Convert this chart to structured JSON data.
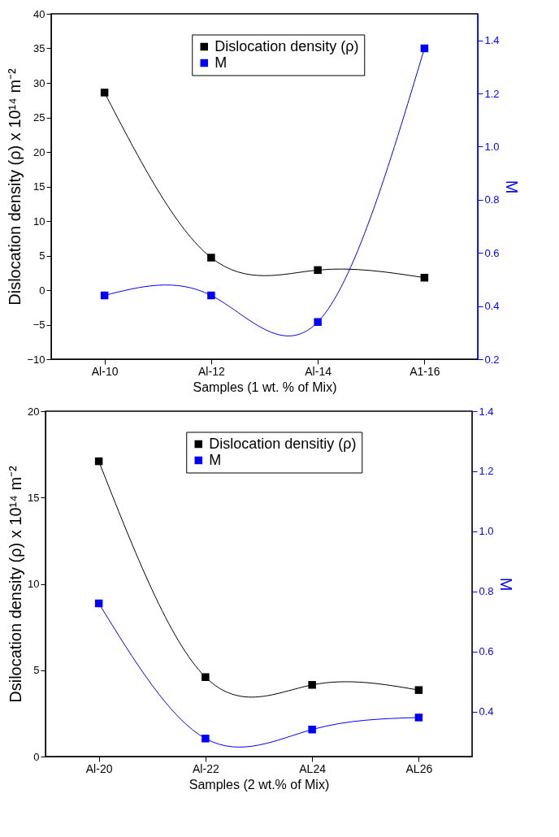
{
  "chart_data": [
    {
      "type": "line",
      "categories": [
        "Al-10",
        "Al-12",
        "Al-14",
        "A1-16"
      ],
      "xlabel": "Samples (1 wt. % of Mix)",
      "ylabel": "Dislocation density (ρ) x 10¹⁴ m⁻²",
      "y2label": "M",
      "series": [
        {
          "name": "Dislocation density (ρ)",
          "color": "#000000",
          "values": [
            28.6,
            4.7,
            2.9,
            1.8
          ]
        },
        {
          "name": "M",
          "color": "#0000ff",
          "axis": "y2",
          "values": [
            0.44,
            0.44,
            0.34,
            1.37
          ]
        }
      ],
      "ylim": [
        -10,
        40
      ],
      "yticks": [
        -10,
        -5,
        0,
        5,
        10,
        15,
        20,
        25,
        30,
        35,
        40
      ],
      "y2lim": [
        0.2,
        1.5
      ],
      "y2ticks": [
        0.2,
        0.4,
        0.6,
        0.8,
        {
          "value": 1,
          "label": "1.0"
        },
        1.2,
        1.4
      ],
      "legend": "top right",
      "marker": "square",
      "grid": false
    },
    {
      "type": "line",
      "categories": [
        "Al-20",
        "Al-22",
        "AL24",
        "AL26"
      ],
      "xlabel": "Samples (2 wt.% of Mix)",
      "ylabel": "Dsilocation density (ρ) x 10¹⁴ m⁻²",
      "y2label": "M",
      "series": [
        {
          "name": "Dislocation densitiy (ρ)",
          "color": "#000000",
          "values": [
            17.1,
            4.6,
            4.15,
            3.85
          ]
        },
        {
          "name": "M",
          "color": "#0000ff",
          "axis": "y2",
          "values": [
            0.76,
            0.31,
            0.34,
            0.38
          ]
        }
      ],
      "ylim": [
        0,
        20
      ],
      "yticks": [
        0,
        5,
        10,
        15,
        20
      ],
      "y2lim": [
        0.25,
        1.4
      ],
      "y2ticks": [
        0.4,
        0.6,
        0.8,
        {
          "value": 1,
          "label": "1.0"
        },
        1.2,
        1.4
      ],
      "legend": "top right",
      "marker": "square",
      "grid": false
    }
  ]
}
